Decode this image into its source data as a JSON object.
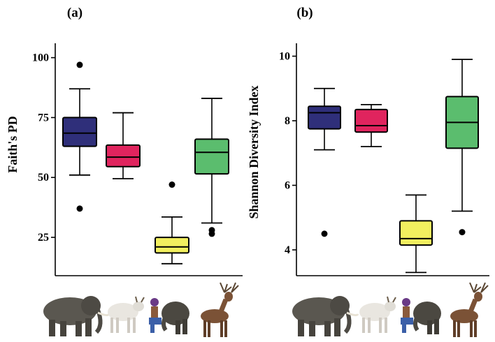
{
  "colors": {
    "wild_elephant": "#2f2f7a",
    "domestic_cattle": "#e0245e",
    "captive_elephant": "#f2ef5f",
    "deer": "#5bbd6e",
    "outlier": "#000000"
  },
  "animals": [
    {
      "icon": "wild-elephant-icon"
    },
    {
      "icon": "cow-icon"
    },
    {
      "icon": "captive-elephant-with-mahout-icon"
    },
    {
      "icon": "deer-icon"
    }
  ],
  "chart_data": [
    {
      "type": "box",
      "panel_label": "(a)",
      "ylabel": "Faith's PD",
      "ylim": [
        9,
        106
      ],
      "yticks": [
        25,
        50,
        75,
        100
      ],
      "ytick_labels": [
        "25",
        "50",
        "75",
        "100"
      ],
      "grid": false,
      "boxes": [
        {
          "color": "wild_elephant",
          "whisker_low": 51,
          "q1": 63,
          "median": 68.5,
          "q3": 75,
          "whisker_high": 87,
          "outliers": [
            97,
            37
          ]
        },
        {
          "color": "domestic_cattle",
          "whisker_low": 49.5,
          "q1": 54.5,
          "median": 58.5,
          "q3": 63.5,
          "whisker_high": 77,
          "outliers": []
        },
        {
          "color": "captive_elephant",
          "whisker_low": 14,
          "q1": 18.5,
          "median": 21,
          "q3": 25,
          "whisker_high": 33.5,
          "outliers": [
            47
          ]
        },
        {
          "color": "deer",
          "whisker_low": 31,
          "q1": 51.5,
          "median": 60.5,
          "q3": 66,
          "whisker_high": 83,
          "outliers": [
            28,
            26.5
          ]
        }
      ]
    },
    {
      "type": "box",
      "panel_label": "(b)",
      "ylabel": "Shannon Diversity Index",
      "ylim": [
        3.2,
        10.4
      ],
      "yticks": [
        4,
        6,
        8,
        10
      ],
      "ytick_labels": [
        "4",
        "6",
        "8",
        "10"
      ],
      "grid": false,
      "boxes": [
        {
          "color": "wild_elephant",
          "whisker_low": 7.1,
          "q1": 7.75,
          "median": 8.25,
          "q3": 8.45,
          "whisker_high": 9.0,
          "outliers": [
            4.5
          ]
        },
        {
          "color": "domestic_cattle",
          "whisker_low": 7.2,
          "q1": 7.65,
          "median": 7.85,
          "q3": 8.35,
          "whisker_high": 8.5,
          "outliers": []
        },
        {
          "color": "captive_elephant",
          "whisker_low": 3.3,
          "q1": 4.15,
          "median": 4.35,
          "q3": 4.9,
          "whisker_high": 5.7,
          "outliers": []
        },
        {
          "color": "deer",
          "whisker_low": 5.2,
          "q1": 7.15,
          "median": 7.95,
          "q3": 8.75,
          "whisker_high": 9.9,
          "outliers": [
            4.55
          ]
        }
      ]
    }
  ]
}
